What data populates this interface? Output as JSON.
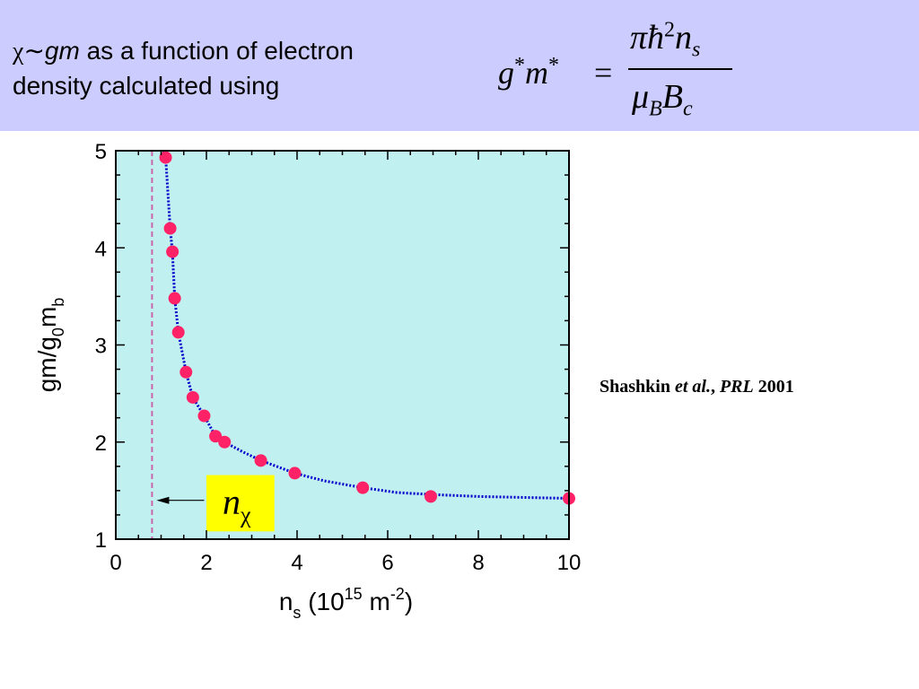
{
  "header": {
    "chi_symbol": "χ",
    "tilde": "∼",
    "gm": "gm",
    "line1_rest": " as a function of electron",
    "line2": "density calculated using"
  },
  "formula": {
    "lhs_g": "g",
    "lhs_m": "m",
    "star": "*",
    "equals": "=",
    "num_pi": "π",
    "num_hbar": "ħ",
    "num_exp": "2",
    "num_n": "n",
    "num_sub": "s",
    "den_mu": "μ",
    "den_mu_sub": "B",
    "den_B": "B",
    "den_B_sub": "c"
  },
  "citation": {
    "author": "Shashkin ",
    "etal": "et al.",
    "comma": ", ",
    "journal": "PRL",
    "year": " 2001"
  },
  "marker_label": {
    "n": "n",
    "chi": "χ"
  },
  "colors": {
    "header_bg": "#ccccff",
    "plot_bg": "#c0f0f0",
    "points": "#ff2266",
    "fit_line": "#0000cc",
    "dashed_line": "#cc66aa",
    "label_box": "#ffff00"
  },
  "chart_data": {
    "type": "scatter",
    "x_axis": {
      "label_base": "n",
      "label_sub": "s",
      "label_mid": " (10",
      "label_sup1": "15",
      "label_unit": " m",
      "label_sup2": "-2",
      "label_end": ")",
      "range": [
        0,
        10
      ],
      "ticks": [
        "0",
        "2",
        "4",
        "6",
        "8",
        "10"
      ],
      "tick_values": [
        0,
        2,
        4,
        6,
        8,
        10
      ]
    },
    "y_axis": {
      "label_base": "gm/g",
      "label_sub1": "0",
      "label_mid": "m",
      "label_sub2": "b",
      "range": [
        1,
        5
      ],
      "ticks": [
        "1",
        "2",
        "3",
        "4",
        "5"
      ],
      "tick_values": [
        1,
        2,
        3,
        4,
        5
      ]
    },
    "grid": false,
    "points": [
      {
        "x": 1.1,
        "y": 4.93
      },
      {
        "x": 1.2,
        "y": 4.2
      },
      {
        "x": 1.25,
        "y": 3.96
      },
      {
        "x": 1.3,
        "y": 3.48
      },
      {
        "x": 1.38,
        "y": 3.13
      },
      {
        "x": 1.55,
        "y": 2.72
      },
      {
        "x": 1.7,
        "y": 2.46
      },
      {
        "x": 1.95,
        "y": 2.27
      },
      {
        "x": 2.2,
        "y": 2.06
      },
      {
        "x": 2.4,
        "y": 2.0
      },
      {
        "x": 3.2,
        "y": 1.81
      },
      {
        "x": 3.95,
        "y": 1.68
      },
      {
        "x": 5.45,
        "y": 1.53
      },
      {
        "x": 6.95,
        "y": 1.44
      },
      {
        "x": 10.0,
        "y": 1.42
      }
    ],
    "fit_curve": [
      [
        1.05,
        5.0
      ],
      [
        1.1,
        4.93
      ],
      [
        1.2,
        4.2
      ],
      [
        1.25,
        3.96
      ],
      [
        1.3,
        3.48
      ],
      [
        1.38,
        3.13
      ],
      [
        1.55,
        2.72
      ],
      [
        1.7,
        2.46
      ],
      [
        1.95,
        2.27
      ],
      [
        2.2,
        2.06
      ],
      [
        2.4,
        2.0
      ],
      [
        2.8,
        1.9
      ],
      [
        3.2,
        1.81
      ],
      [
        3.95,
        1.68
      ],
      [
        4.6,
        1.6
      ],
      [
        5.45,
        1.53
      ],
      [
        6.2,
        1.48
      ],
      [
        6.95,
        1.46
      ],
      [
        8.0,
        1.44
      ],
      [
        9.0,
        1.43
      ],
      [
        10.0,
        1.42
      ]
    ],
    "critical_density_x": 0.8,
    "label_box": {
      "x0": 2.0,
      "x1": 3.5,
      "y0": 1.08,
      "y1": 1.66
    },
    "arrow": {
      "from_x": 1.95,
      "to_x": 0.9,
      "y": 1.4
    }
  }
}
